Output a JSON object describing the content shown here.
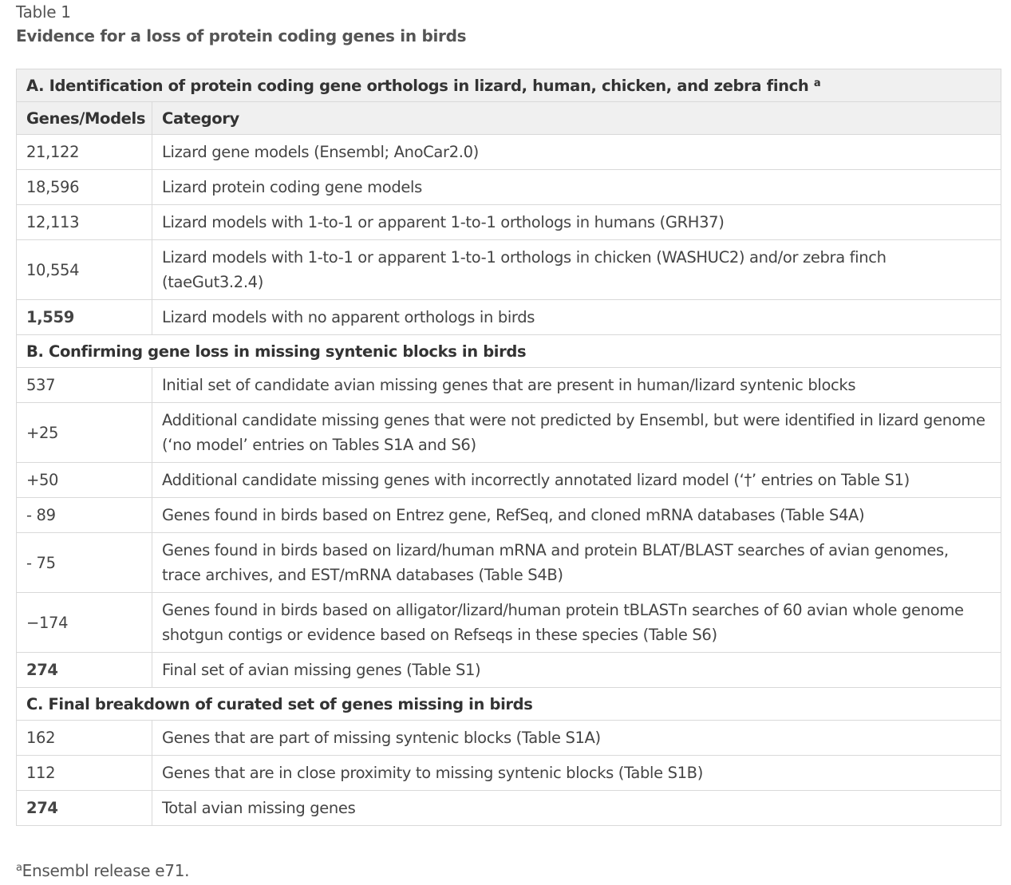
{
  "table_label": "Table 1",
  "table_title": "Evidence for a loss of protein coding genes in birds",
  "section_a": {
    "title": "A. Identification of protein coding gene orthologs in lizard, human, chicken, and zebra finch",
    "title_sup": "a"
  },
  "columns": {
    "genes_models": "Genes/Models",
    "category": "Category"
  },
  "rows_a": [
    {
      "value": "21,122",
      "category": "Lizard gene models (Ensembl; AnoCar2.0)"
    },
    {
      "value": "18,596",
      "category": "Lizard protein coding gene models"
    },
    {
      "value": "12,113",
      "category": "Lizard models with 1-to-1 or apparent 1-to-1 orthologs in humans (GRH37)"
    },
    {
      "value": "10,554",
      "category": "Lizard models with 1-to-1 or apparent 1-to-1 orthologs in chicken (WASHUC2) and/or zebra finch (taeGut3.2.4)"
    },
    {
      "value": "1,559",
      "category": "Lizard models with no apparent orthologs in birds"
    }
  ],
  "section_b": {
    "title": "B. Confirming gene loss in missing syntenic blocks in birds"
  },
  "rows_b": [
    {
      "value": "537",
      "category": "Initial set of candidate avian missing genes that are present in human/lizard syntenic blocks"
    },
    {
      "value": "+25",
      "category": "Additional candidate missing genes that were not predicted by Ensembl, but were identified in lizard genome (‘no model’ entries on Tables S1A and S6)"
    },
    {
      "value": "+50",
      "category": "Additional candidate missing genes with incorrectly annotated lizard model (‘†’ entries on Table S1)"
    },
    {
      "value": "- 89",
      "category": "Genes found in birds based on Entrez gene, RefSeq, and cloned mRNA databases (Table S4A)"
    },
    {
      "value": "- 75",
      "category": "Genes found in birds based on lizard/human mRNA and protein BLAT/BLAST searches of avian genomes, trace archives, and EST/mRNA databases (Table S4B)"
    },
    {
      "value": "−174",
      "category": "Genes found in birds based on alligator/lizard/human protein tBLASTn searches of 60 avian whole genome shotgun contigs or evidence based on Refseqs in these species (Table S6)"
    },
    {
      "value": "274",
      "category": "Final set of avian missing genes (Table S1)"
    }
  ],
  "section_c": {
    "title": "C. Final breakdown of curated set of genes missing in birds"
  },
  "rows_c": [
    {
      "value": "162",
      "category": "Genes that are part of missing syntenic blocks (Table S1A)"
    },
    {
      "value": "112",
      "category": "Genes that are in close proximity to missing syntenic blocks (Table S1B)"
    },
    {
      "value": "274",
      "category": "Total avian missing genes"
    }
  ],
  "footnote": {
    "mark": "a",
    "text": "Ensembl release e71."
  }
}
